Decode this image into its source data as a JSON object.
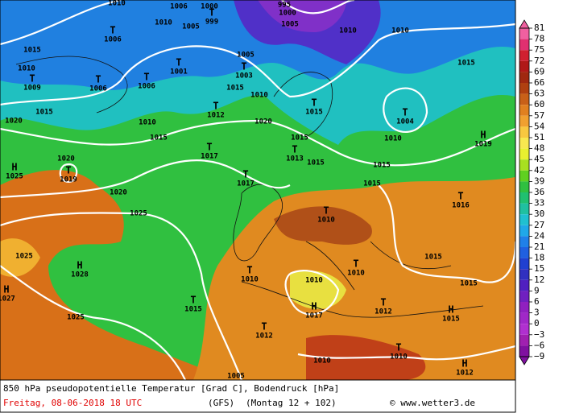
{
  "caption": {
    "title": "850 hPa pseudopotentielle Temperatur [Grad C], Bodendruck [hPa]",
    "date": "Freitag, 08-06-2018  18 UTC",
    "model": "(GFS)",
    "run": "(Montag 12 + 102)",
    "credit": "© www.wetter3.de"
  },
  "isobar_labels": [
    "1010",
    "1006",
    "1000",
    "995",
    "1000",
    "1010",
    "1005",
    "1005",
    "1010",
    "1010",
    "1015",
    "1005",
    "1010",
    "1015",
    "1010",
    "1015",
    "1015",
    "1010",
    "1020",
    "1020",
    "1015",
    "1010",
    "1015",
    "1015",
    "1015",
    "1020",
    "1015",
    "1020",
    "1025",
    "1025",
    "1015",
    "1010",
    "1015",
    "1025",
    "1010",
    "1005"
  ],
  "markers": [
    {
      "symbol": "T",
      "value": "999"
    },
    {
      "symbol": "T",
      "value": "1006"
    },
    {
      "symbol": "T",
      "value": "1001"
    },
    {
      "symbol": "T",
      "value": "1003"
    },
    {
      "symbol": "T",
      "value": "1009"
    },
    {
      "symbol": "T",
      "value": "1006"
    },
    {
      "symbol": "T",
      "value": "1006"
    },
    {
      "symbol": "T",
      "value": "1012"
    },
    {
      "symbol": "T",
      "value": "1015"
    },
    {
      "symbol": "T",
      "value": "1004"
    },
    {
      "symbol": "H",
      "value": "1019"
    },
    {
      "symbol": "T",
      "value": "1017"
    },
    {
      "symbol": "T",
      "value": "1013"
    },
    {
      "symbol": "T",
      "value": "1019"
    },
    {
      "symbol": "H",
      "value": "1025"
    },
    {
      "symbol": "T",
      "value": "1017"
    },
    {
      "symbol": "T",
      "value": "1016"
    },
    {
      "symbol": "T",
      "value": "1010"
    },
    {
      "symbol": "H",
      "value": "1028"
    },
    {
      "symbol": "T",
      "value": "1010"
    },
    {
      "symbol": "T",
      "value": "1010"
    },
    {
      "symbol": "H",
      "value": "1027"
    },
    {
      "symbol": "T",
      "value": "1015"
    },
    {
      "symbol": "H",
      "value": "1017"
    },
    {
      "symbol": "T",
      "value": "1012"
    },
    {
      "symbol": "H",
      "value": "1015"
    },
    {
      "symbol": "T",
      "value": "1012"
    },
    {
      "symbol": "T",
      "value": "1010"
    },
    {
      "symbol": "H",
      "value": "1012"
    }
  ],
  "colorbar": {
    "ticks": [
      81,
      78,
      75,
      72,
      69,
      66,
      63,
      60,
      57,
      54,
      51,
      48,
      45,
      42,
      39,
      36,
      33,
      30,
      27,
      24,
      21,
      18,
      15,
      12,
      9,
      6,
      3,
      0,
      {
        "value": -3,
        "label": "−3"
      },
      {
        "value": -6,
        "label": "−6"
      },
      {
        "value": -9,
        "label": "−9"
      }
    ],
    "colors": [
      "#f060a0",
      "#e03070",
      "#d02030",
      "#b01818",
      "#a02810",
      "#b04010",
      "#c86018",
      "#e08020",
      "#f0a030",
      "#f8c840",
      "#f8e850",
      "#e8f030",
      "#a8e020",
      "#60d020",
      "#30c040",
      "#20c070",
      "#20c0a0",
      "#20c0d0",
      "#20a8e8",
      "#2080e8",
      "#2060e0",
      "#2040d0",
      "#3030c0",
      "#5020c0",
      "#7020c0",
      "#9020c0",
      "#a028c8",
      "#b030d0",
      "#a020b0",
      "#8010a0"
    ]
  }
}
